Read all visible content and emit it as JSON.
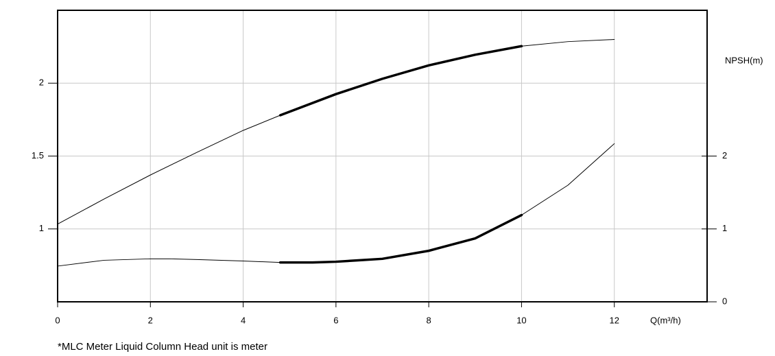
{
  "chart_data": {
    "type": "line",
    "x_label": "Q(m³/h)",
    "y2_label": "NPSH(m)",
    "note": "*MLC Meter Liquid Column Head unit is meter",
    "xlim": [
      0,
      14
    ],
    "xticks": [
      0,
      2,
      4,
      6,
      8,
      10,
      12
    ],
    "ylim": [
      0.5,
      2.5
    ],
    "yticks": [
      1,
      1.5,
      2
    ],
    "y2lim": [
      0,
      4
    ],
    "y2ticks": [
      0,
      1,
      2
    ],
    "grid": true,
    "series": [
      {
        "color": "#000000",
        "width": 1,
        "axis": "y",
        "x": [
          0,
          1,
          2,
          3,
          4,
          4.8,
          6,
          7,
          8,
          9,
          10,
          11,
          12
        ],
        "values": [
          1.033,
          1.205,
          1.37,
          1.525,
          1.676,
          1.78,
          1.925,
          2.03,
          2.122,
          2.195,
          2.254,
          2.285,
          2.3
        ]
      },
      {
        "color": "#000000",
        "width": 3.5,
        "axis": "y",
        "x": [
          4.8,
          6,
          7,
          8,
          9,
          10
        ],
        "values": [
          1.78,
          1.925,
          2.03,
          2.122,
          2.195,
          2.254
        ]
      },
      {
        "color": "#000000",
        "width": 1,
        "axis": "y2",
        "x": [
          0,
          1,
          2,
          2.4,
          3,
          4,
          4.8,
          5.5,
          6,
          7,
          8,
          9,
          10,
          11,
          12
        ],
        "values": [
          0.49,
          0.57,
          0.59,
          0.59,
          0.58,
          0.56,
          0.54,
          0.54,
          0.55,
          0.59,
          0.7,
          0.87,
          1.19,
          1.6,
          2.17
        ]
      },
      {
        "color": "#000000",
        "width": 3.5,
        "axis": "y2",
        "x": [
          4.8,
          5.5,
          6,
          7,
          8,
          9,
          10
        ],
        "values": [
          0.54,
          0.54,
          0.55,
          0.59,
          0.7,
          0.87,
          1.19
        ]
      }
    ]
  }
}
